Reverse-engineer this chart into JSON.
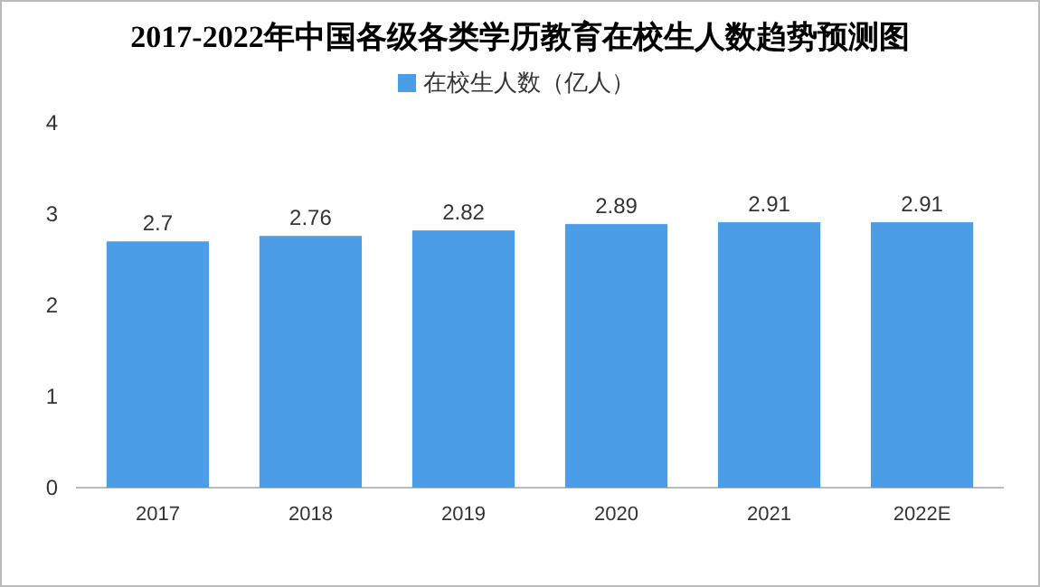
{
  "chart_data": {
    "type": "bar",
    "title": "2017-2022年中国各级各类学历教育在校生人数趋势预测图",
    "categories": [
      "2017",
      "2018",
      "2019",
      "2020",
      "2021",
      "2022E"
    ],
    "series": [
      {
        "name": "在校生人数（亿人）",
        "color": "#4b9de8",
        "values": [
          2.7,
          2.76,
          2.82,
          2.89,
          2.91,
          2.91
        ]
      }
    ],
    "ylim": [
      0,
      4
    ],
    "yticks": [
      0,
      1,
      2,
      3,
      4
    ],
    "grid": false,
    "legend": "top",
    "data_labels": true
  }
}
